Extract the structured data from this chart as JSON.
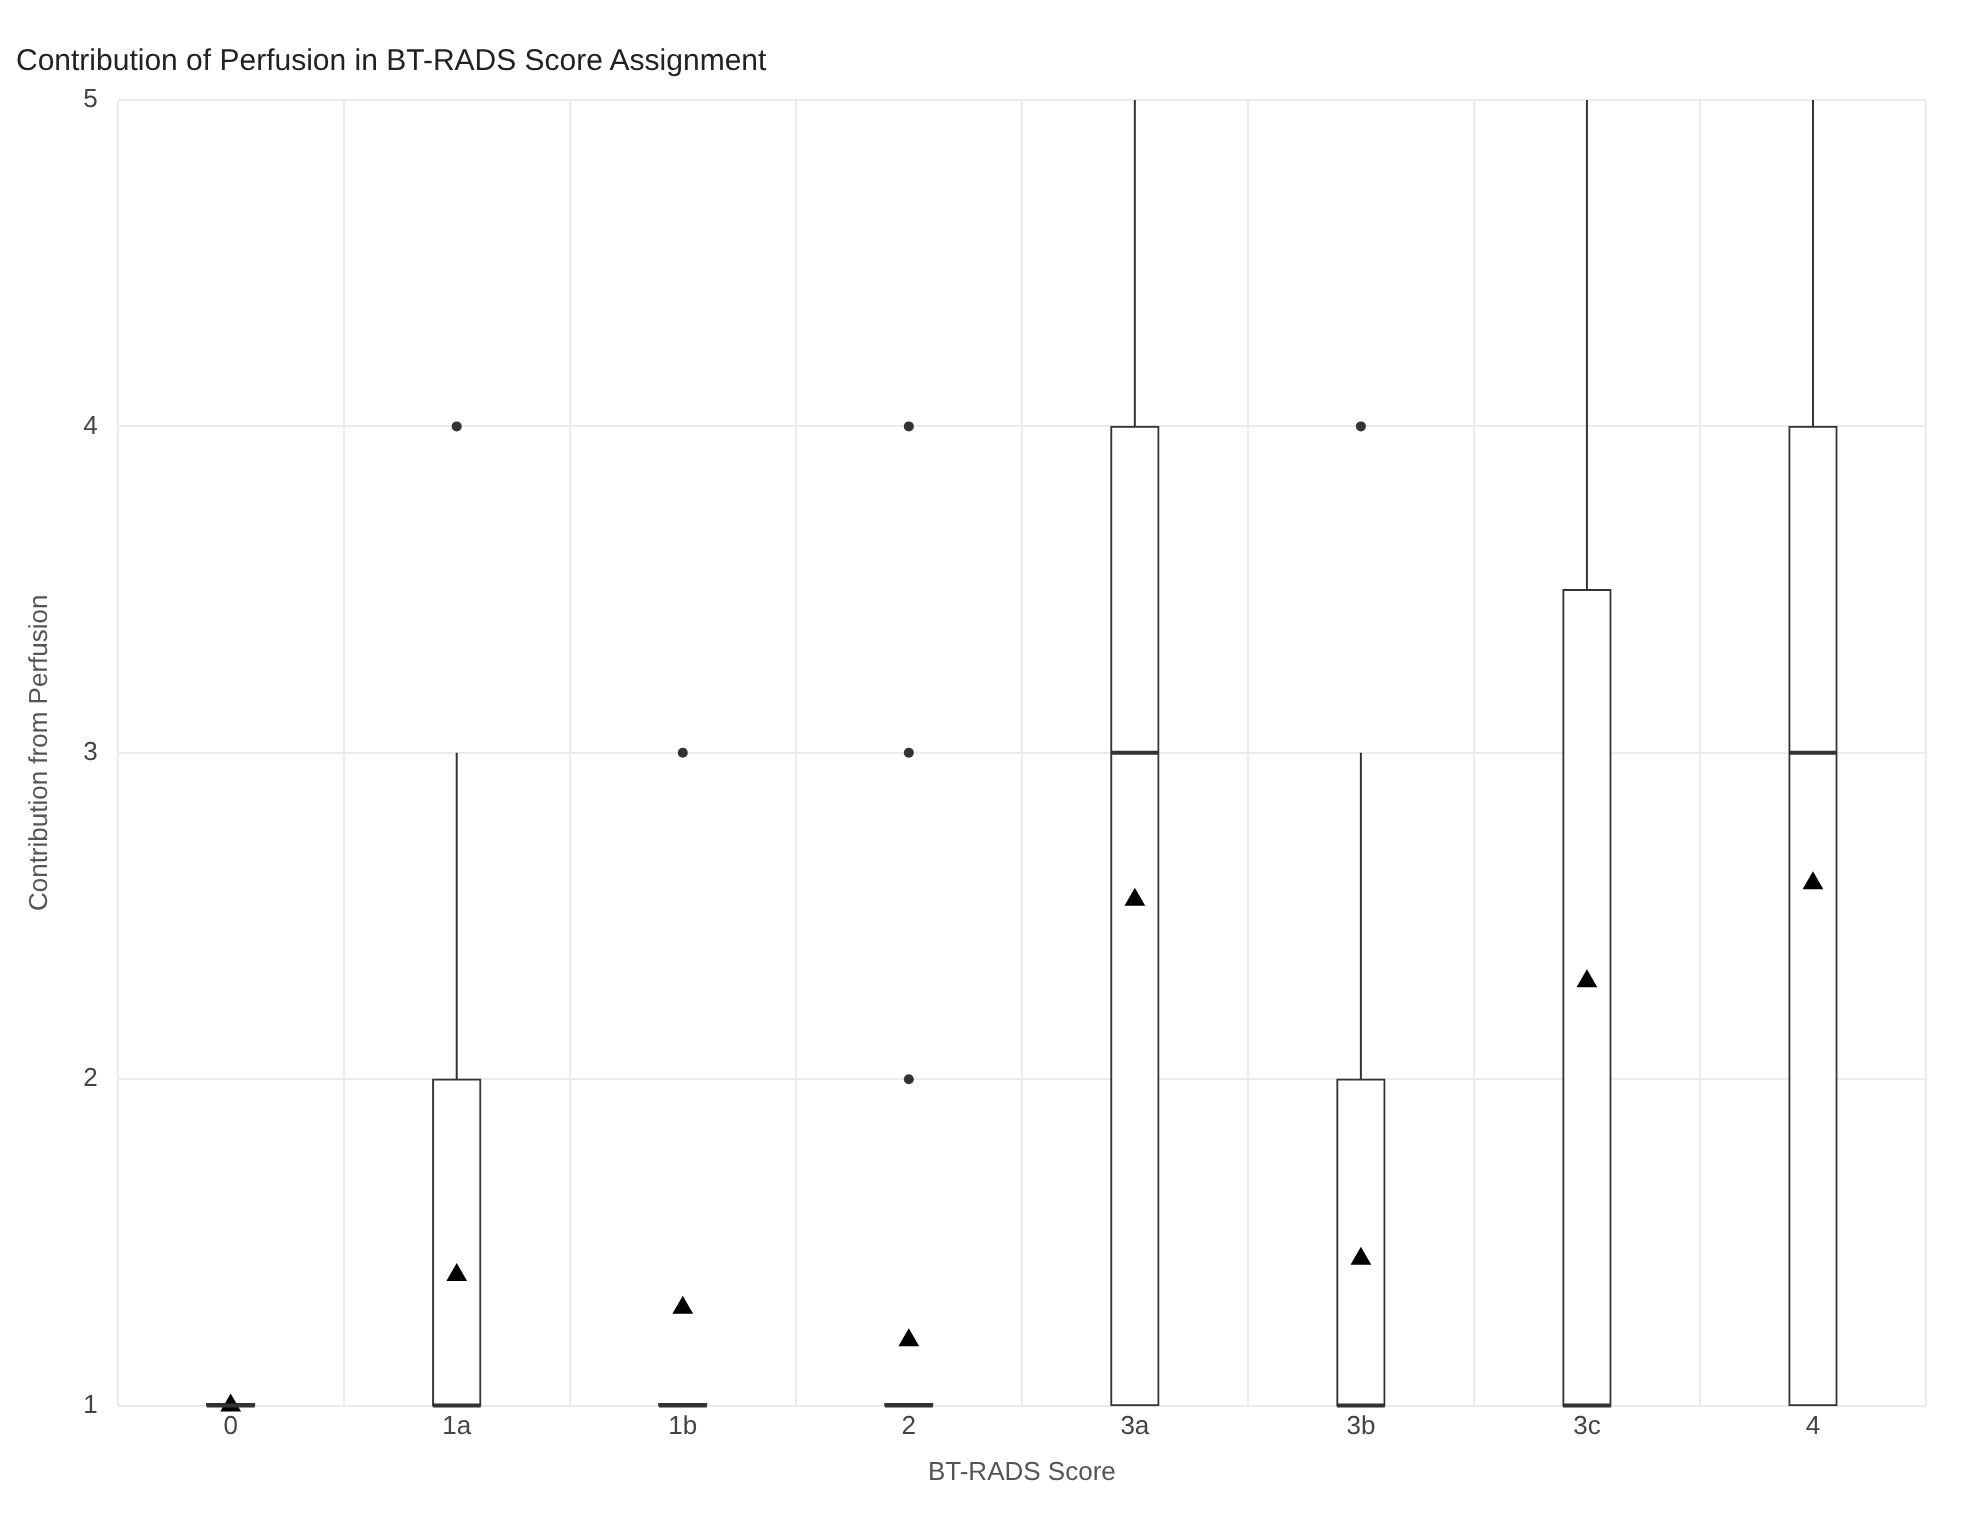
{
  "chart_data": {
    "type": "box",
    "title": "Contribution of Perfusion in BT-RADS Score Assignment",
    "xlabel": "BT-RADS Score",
    "ylabel": "Contribution from Perfusion",
    "categories": [
      "0",
      "1a",
      "1b",
      "2",
      "3a",
      "3b",
      "3c",
      "4"
    ],
    "boxes": [
      {
        "low": 1,
        "q1": 1,
        "median": 1,
        "q3": 1,
        "high": 1,
        "mean": 1
      },
      {
        "low": 1,
        "q1": 1,
        "median": 1,
        "q3": 2,
        "high": 3,
        "mean": 1.4,
        "outliers": [
          4
        ]
      },
      {
        "low": 1,
        "q1": 1,
        "median": 1,
        "q3": 1,
        "high": 1,
        "mean": 1.3,
        "outliers": [
          3
        ]
      },
      {
        "low": 1,
        "q1": 1,
        "median": 1,
        "q3": 1,
        "high": 1,
        "mean": 1.2,
        "outliers": [
          2,
          3,
          4
        ]
      },
      {
        "low": 1,
        "q1": 1,
        "median": 3,
        "q3": 4,
        "high": 5,
        "mean": 2.55
      },
      {
        "low": 1,
        "q1": 1,
        "median": 1,
        "q3": 2,
        "high": 3,
        "mean": 1.45,
        "outliers": [
          4
        ]
      },
      {
        "low": 1,
        "q1": 1,
        "median": 1,
        "q3": 3.5,
        "high": 5,
        "mean": 2.3
      },
      {
        "low": 1,
        "q1": 1,
        "median": 3,
        "q3": 4,
        "high": 5,
        "mean": 2.6
      }
    ],
    "marker": "triangle",
    "ylim": [
      1,
      5
    ],
    "yticks": [
      1,
      2,
      3,
      4,
      5
    ],
    "grid": true,
    "legend": false
  }
}
